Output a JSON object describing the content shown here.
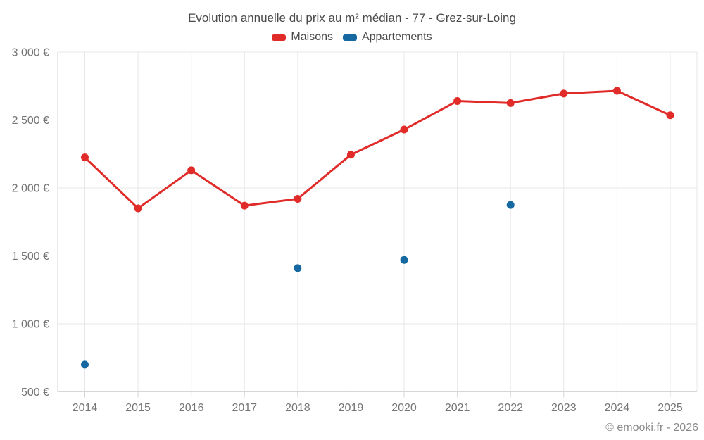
{
  "title": "Evolution annuelle du prix au m² médian - 77 - Grez-sur-Loing",
  "footer": "© emooki.fr - 2026",
  "colors": {
    "maisons": "#e02b29",
    "appartements": "#1669a0",
    "grid": "#e7e7e7",
    "axis": "#d6d6d6",
    "tick_text": "#757575",
    "title_text": "#4a4a4a",
    "footer_text": "#8a8a8a"
  },
  "chart_data": {
    "type": "line",
    "title": "Evolution annuelle du prix au m² médian - 77 - Grez-sur-Loing",
    "categories": [
      "2014",
      "2015",
      "2016",
      "2017",
      "2018",
      "2019",
      "2020",
      "2021",
      "2022",
      "2023",
      "2024",
      "2025"
    ],
    "series": [
      {
        "name": "Maisons",
        "type": "line",
        "color": "#e02b29",
        "values": [
          2225,
          1850,
          2130,
          1870,
          1920,
          2245,
          2430,
          2640,
          2625,
          2695,
          2715,
          2535
        ]
      },
      {
        "name": "Appartements",
        "type": "scatter",
        "color": "#1669a0",
        "values": [
          700,
          null,
          null,
          null,
          1410,
          null,
          1470,
          null,
          1875,
          null,
          null,
          null
        ]
      }
    ],
    "xlabel": "",
    "ylabel": "",
    "ylim": [
      500,
      3000
    ],
    "yticks": [
      500,
      1000,
      1500,
      2000,
      2500,
      3000
    ],
    "ytick_labels": [
      "500 €",
      "1 000 €",
      "1 500 €",
      "2 000 €",
      "2 500 €",
      "3 000 €"
    ],
    "grid": true,
    "legend_position": "top"
  }
}
